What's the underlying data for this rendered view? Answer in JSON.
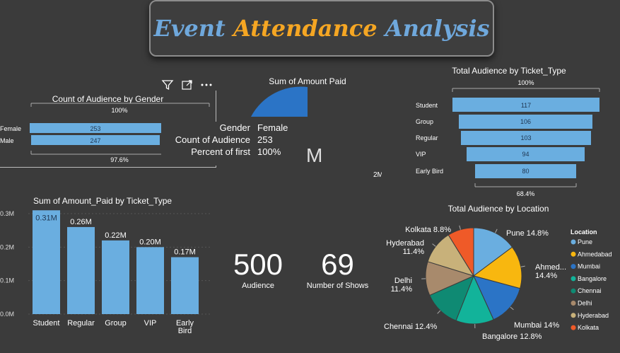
{
  "dashboard": {
    "title_part1": "Event",
    "title_part2": "Attendance",
    "title_part3": "Analysis"
  },
  "toolbar": {
    "filter_icon": "filter-icon",
    "focus_icon": "focus-mode-icon",
    "more_icon": "more-options-icon"
  },
  "gender_funnel": {
    "title": "Count of Audience by Gender",
    "top_pct": "100%",
    "bottom_pct": "97.6%",
    "rows": [
      {
        "label": "Female",
        "value": "253"
      },
      {
        "label": "Male",
        "value": "247"
      }
    ]
  },
  "tooltip": {
    "rows": [
      {
        "key": "Gender",
        "value": "Female"
      },
      {
        "key": "Count of Audience",
        "value": "253"
      },
      {
        "key": "Percent of first",
        "value": "100%"
      }
    ]
  },
  "gauge": {
    "title": "Sum of Amount Paid",
    "value_partial": "M",
    "max_label": "2M",
    "min_label": "..."
  },
  "ticket_funnel": {
    "title": "Total Audience by Ticket_Type",
    "top_pct": "100%",
    "bottom_pct": "68.4%",
    "rows": [
      {
        "label": "Student",
        "value": "117"
      },
      {
        "label": "Group",
        "value": "106"
      },
      {
        "label": "Regular",
        "value": "103"
      },
      {
        "label": "VIP",
        "value": "94"
      },
      {
        "label": "Early Bird",
        "value": "80"
      }
    ]
  },
  "kpis": {
    "audience_value": "500",
    "audience_label": "Audience",
    "shows_value": "69",
    "shows_label": "Number of Shows"
  },
  "chart_data": [
    {
      "type": "bar",
      "title": "Sum of Amount_Paid by Ticket_Type",
      "categories": [
        "Student",
        "Regular",
        "Group",
        "VIP",
        "Early Bird"
      ],
      "values": [
        0.31,
        0.26,
        0.22,
        0.2,
        0.17
      ],
      "data_labels": [
        "0.31M",
        "0.26M",
        "0.22M",
        "0.20M",
        "0.17M"
      ],
      "yticks": [
        "0.0M",
        "0.1M",
        "0.2M",
        "0.3M"
      ],
      "ylim": [
        0,
        0.3
      ],
      "color": "#6aaee0"
    },
    {
      "type": "pie",
      "title": "Total Audience by Location",
      "legend_title": "Location",
      "slices": [
        {
          "name": "Pune",
          "pct": 14.8,
          "label": "Pune 14.8%",
          "color": "#6aaee0"
        },
        {
          "name": "Ahmedabad",
          "pct": 14.4,
          "label": "Ahmed... 14.4%",
          "color": "#f8b70f"
        },
        {
          "name": "Mumbai",
          "pct": 14.0,
          "label": "Mumbai 14%",
          "color": "#2b74c6"
        },
        {
          "name": "Bangalore",
          "pct": 12.8,
          "label": "Bangalore 12.8%",
          "color": "#12b39a"
        },
        {
          "name": "Chennai",
          "pct": 12.4,
          "label": "Chennai 12.4%",
          "color": "#0f8a73"
        },
        {
          "name": "Delhi",
          "pct": 11.4,
          "label": "Delhi 11.4%",
          "color": "#a88a6c"
        },
        {
          "name": "Hyderabad",
          "pct": 11.4,
          "label": "Hyderabad 11.4%",
          "color": "#c8b17a"
        },
        {
          "name": "Kolkata",
          "pct": 8.8,
          "label": "Kolkata 8.8%",
          "color": "#ef5a28"
        }
      ]
    }
  ]
}
